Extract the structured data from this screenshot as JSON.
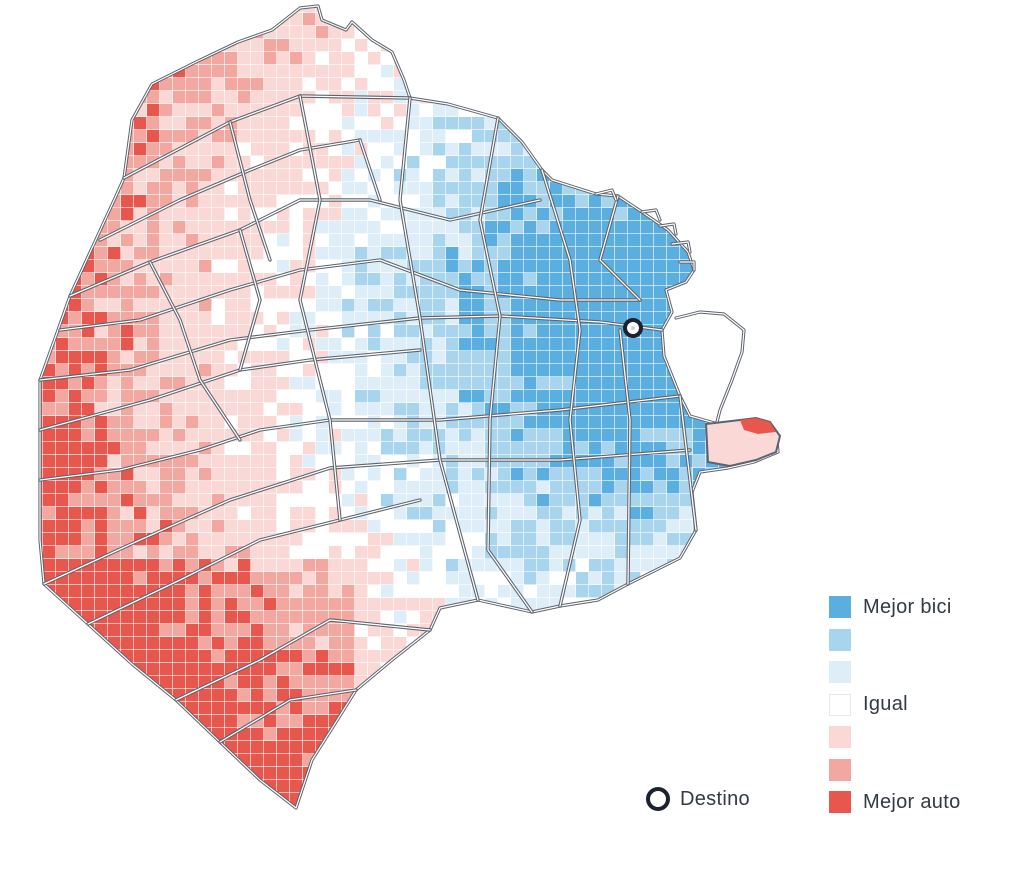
{
  "legend": {
    "items": [
      {
        "label": "Mejor bici",
        "color": "#5aafe0"
      },
      {
        "label": "",
        "color": "#a8d4ee"
      },
      {
        "label": "",
        "color": "#deeef9"
      },
      {
        "label": "Igual",
        "color": "#ffffff"
      },
      {
        "label": "",
        "color": "#f9d8d6"
      },
      {
        "label": "",
        "color": "#f3a7a1"
      },
      {
        "label": "Mejor auto",
        "color": "#e8574e"
      }
    ],
    "destino_label": "Destino"
  },
  "colors": {
    "bici_strong": "#5aafe0",
    "bici_medium": "#a8d4ee",
    "bici_light": "#deeef9",
    "igual": "#ffffff",
    "auto_light": "#f9d8d6",
    "auto_medium": "#f3a7a1",
    "auto_strong": "#e8574e",
    "boundary": "#5d636c",
    "destino": "#1c2230"
  },
  "map": {
    "description_icon": "map-of-city-grid",
    "destination_marker": "destino-marker-icon"
  }
}
